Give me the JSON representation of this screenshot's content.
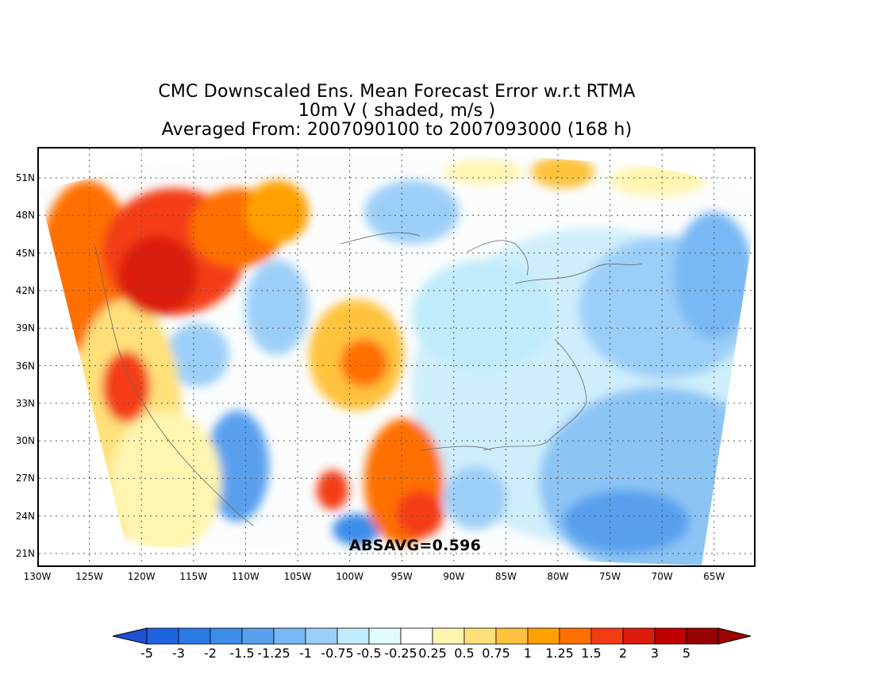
{
  "title": {
    "line1": "CMC Downscaled Ens. Mean Forecast Error w.r.t RTMA",
    "line2": "10m V ( shaded, m/s )",
    "line3": "Averaged From: 2007090100 to 2007093000 (168 h)"
  },
  "absavg_text": "ABSAVG=0.596",
  "lat_labels": [
    "51N",
    "48N",
    "45N",
    "42N",
    "39N",
    "36N",
    "33N",
    "30N",
    "27N",
    "24N",
    "21N"
  ],
  "lon_labels": [
    "130W",
    "125W",
    "120W",
    "115W",
    "110W",
    "105W",
    "100W",
    "95W",
    "90W",
    "85W",
    "80W",
    "75W",
    "70W",
    "65W"
  ],
  "colorbar": {
    "labels": [
      "-5",
      "-3",
      "-2",
      "-1.5",
      "-1.25",
      "-1",
      "-0.75",
      "-0.5",
      "-0.25",
      "0.25",
      "0.5",
      "0.75",
      "1",
      "1.25",
      "1.5",
      "2",
      "3",
      "5"
    ],
    "colors": [
      "#1e64e0",
      "#2b7ae6",
      "#3d8ce8",
      "#58a0ee",
      "#78b8f4",
      "#9ccff8",
      "#c0ebfa",
      "#e2fbff",
      "#ffffff",
      "#fff5b0",
      "#ffe07a",
      "#ffc23e",
      "#ffa000",
      "#ff7000",
      "#f43c14",
      "#dc1c0c",
      "#c00000",
      "#960000"
    ],
    "low_arrow_color": "#1e50d6",
    "high_arrow_color": "#a00000"
  }
}
